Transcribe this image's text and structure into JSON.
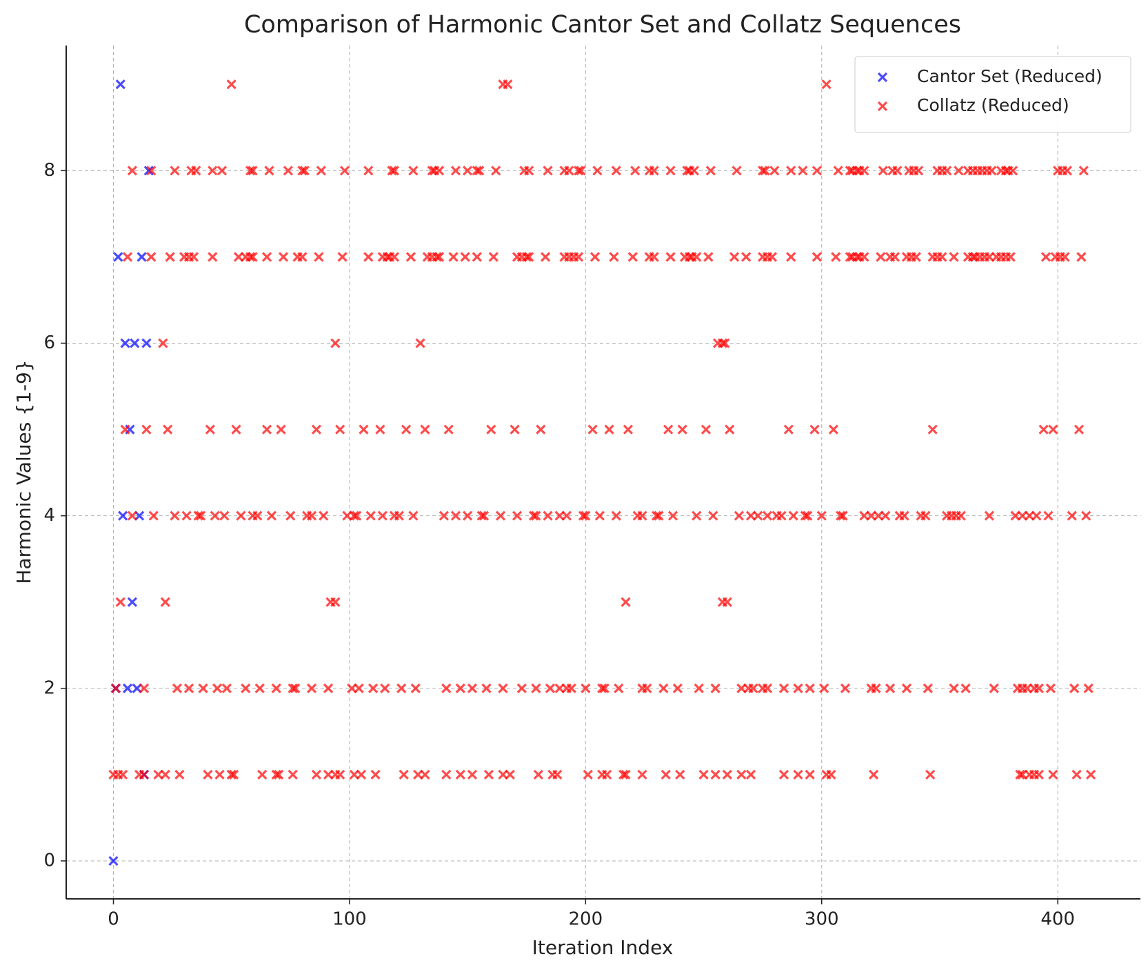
{
  "chart_data": {
    "type": "scatter",
    "title": "Comparison of Harmonic Cantor Set and Collatz Sequences",
    "x_label": "Iteration Index",
    "y_label": "Harmonic Values {1-9}",
    "xlim": [
      -20,
      435
    ],
    "ylim": [
      -0.44,
      9.45
    ],
    "xticks": [
      0,
      100,
      200,
      300,
      400
    ],
    "yticks": [
      0,
      2,
      4,
      6,
      8
    ],
    "grid": true,
    "legend_position": "upper right",
    "series": [
      {
        "name": "Cantor Set (Reduced)",
        "color": "#0000ff",
        "x": [
          0,
          1,
          2,
          3,
          4,
          5,
          6,
          7,
          8,
          9,
          10,
          11,
          12,
          13,
          14,
          15
        ],
        "values": [
          0,
          2,
          7,
          9,
          4,
          6,
          2,
          5,
          3,
          6,
          2,
          4,
          7,
          1,
          6,
          8
        ]
      },
      {
        "name": "Collatz (Reduced)",
        "color": "#ff0000",
        "x": [
          50,
          165,
          167,
          302,
          8,
          16,
          26,
          33,
          35,
          42,
          46,
          58,
          59,
          66,
          74,
          80,
          81,
          88,
          98,
          108,
          118,
          119,
          127,
          135,
          136,
          138,
          145,
          150,
          154,
          155,
          162,
          174,
          176,
          184,
          191,
          193,
          197,
          198,
          205,
          213,
          221,
          227,
          229,
          236,
          243,
          244,
          246,
          253,
          264,
          275,
          276,
          280,
          287,
          292,
          298,
          307,
          312,
          313,
          315,
          316,
          318,
          326,
          330,
          332,
          337,
          339,
          341,
          349,
          351,
          353,
          358,
          362,
          364,
          366,
          368,
          370,
          372,
          376,
          378,
          379,
          381,
          400,
          402,
          404,
          411,
          6,
          16,
          24,
          30,
          32,
          34,
          42,
          53,
          56,
          58,
          59,
          65,
          72,
          78,
          80,
          87,
          97,
          108,
          114,
          116,
          117,
          119,
          126,
          133,
          135,
          137,
          138,
          144,
          149,
          154,
          161,
          171,
          173,
          175,
          176,
          183,
          191,
          193,
          195,
          197,
          204,
          212,
          220,
          227,
          229,
          236,
          242,
          244,
          245,
          247,
          252,
          263,
          268,
          275,
          277,
          279,
          287,
          298,
          306,
          312,
          313,
          315,
          316,
          318,
          325,
          329,
          331,
          336,
          338,
          340,
          347,
          349,
          351,
          356,
          362,
          364,
          365,
          367,
          369,
          371,
          374,
          376,
          378,
          380,
          395,
          399,
          401,
          403,
          410,
          21,
          94,
          130,
          256,
          258,
          259,
          5,
          14,
          23,
          41,
          52,
          65,
          71,
          86,
          96,
          106,
          113,
          124,
          132,
          142,
          160,
          170,
          181,
          203,
          210,
          218,
          235,
          241,
          251,
          261,
          286,
          297,
          305,
          347,
          394,
          398,
          409,
          8,
          17,
          26,
          31,
          36,
          37,
          43,
          47,
          54,
          59,
          61,
          67,
          75,
          82,
          84,
          89,
          99,
          102,
          103,
          109,
          114,
          119,
          121,
          127,
          140,
          145,
          150,
          156,
          157,
          164,
          171,
          178,
          179,
          184,
          189,
          192,
          199,
          200,
          206,
          213,
          222,
          224,
          230,
          231,
          237,
          247,
          254,
          265,
          270,
          273,
          277,
          281,
          283,
          288,
          293,
          294,
          300,
          308,
          309,
          318,
          321,
          324,
          327,
          333,
          335,
          342,
          344,
          353,
          355,
          357,
          359,
          371,
          382,
          385,
          388,
          391,
          396,
          406,
          412,
          3,
          22,
          92,
          94,
          217,
          258,
          260,
          1,
          13,
          27,
          32,
          38,
          44,
          48,
          56,
          62,
          69,
          76,
          77,
          84,
          91,
          101,
          104,
          110,
          115,
          122,
          128,
          141,
          147,
          152,
          158,
          165,
          173,
          179,
          185,
          189,
          192,
          194,
          200,
          207,
          208,
          214,
          224,
          226,
          233,
          239,
          248,
          255,
          266,
          269,
          271,
          275,
          277,
          284,
          290,
          295,
          301,
          310,
          321,
          323,
          329,
          336,
          345,
          356,
          361,
          373,
          383,
          385,
          387,
          390,
          392,
          397,
          407,
          413,
          0,
          2,
          4,
          11,
          13,
          19,
          22,
          28,
          40,
          45,
          50,
          51,
          63,
          69,
          70,
          76,
          86,
          91,
          94,
          96,
          102,
          105,
          111,
          123,
          129,
          132,
          141,
          147,
          152,
          159,
          165,
          168,
          180,
          186,
          188,
          201,
          207,
          209,
          216,
          217,
          224,
          234,
          240,
          250,
          255,
          260,
          266,
          270,
          284,
          290,
          295,
          302,
          304,
          322,
          346,
          384,
          385,
          388,
          390,
          392,
          398,
          408,
          414
        ],
        "values": [
          9,
          9,
          9,
          9,
          8,
          8,
          8,
          8,
          8,
          8,
          8,
          8,
          8,
          8,
          8,
          8,
          8,
          8,
          8,
          8,
          8,
          8,
          8,
          8,
          8,
          8,
          8,
          8,
          8,
          8,
          8,
          8,
          8,
          8,
          8,
          8,
          8,
          8,
          8,
          8,
          8,
          8,
          8,
          8,
          8,
          8,
          8,
          8,
          8,
          8,
          8,
          8,
          8,
          8,
          8,
          8,
          8,
          8,
          8,
          8,
          8,
          8,
          8,
          8,
          8,
          8,
          8,
          8,
          8,
          8,
          8,
          8,
          8,
          8,
          8,
          8,
          8,
          8,
          8,
          8,
          8,
          8,
          8,
          8,
          8,
          7,
          7,
          7,
          7,
          7,
          7,
          7,
          7,
          7,
          7,
          7,
          7,
          7,
          7,
          7,
          7,
          7,
          7,
          7,
          7,
          7,
          7,
          7,
          7,
          7,
          7,
          7,
          7,
          7,
          7,
          7,
          7,
          7,
          7,
          7,
          7,
          7,
          7,
          7,
          7,
          7,
          7,
          7,
          7,
          7,
          7,
          7,
          7,
          7,
          7,
          7,
          7,
          7,
          7,
          7,
          7,
          7,
          7,
          7,
          7,
          7,
          7,
          7,
          7,
          7,
          7,
          7,
          7,
          7,
          7,
          7,
          7,
          7,
          7,
          7,
          7,
          7,
          7,
          7,
          7,
          7,
          7,
          7,
          7,
          7,
          7,
          7,
          7,
          7,
          6,
          6,
          6,
          6,
          6,
          6,
          5,
          5,
          5,
          5,
          5,
          5,
          5,
          5,
          5,
          5,
          5,
          5,
          5,
          5,
          5,
          5,
          5,
          5,
          5,
          5,
          5,
          5,
          5,
          5,
          5,
          5,
          5,
          5,
          5,
          5,
          5,
          4,
          4,
          4,
          4,
          4,
          4,
          4,
          4,
          4,
          4,
          4,
          4,
          4,
          4,
          4,
          4,
          4,
          4,
          4,
          4,
          4,
          4,
          4,
          4,
          4,
          4,
          4,
          4,
          4,
          4,
          4,
          4,
          4,
          4,
          4,
          4,
          4,
          4,
          4,
          4,
          4,
          4,
          4,
          4,
          4,
          4,
          4,
          4,
          4,
          4,
          4,
          4,
          4,
          4,
          4,
          4,
          4,
          4,
          4,
          4,
          4,
          4,
          4,
          4,
          4,
          4,
          4,
          4,
          4,
          4,
          4,
          4,
          4,
          4,
          4,
          4,
          4,
          4,
          4,
          3,
          3,
          3,
          3,
          3,
          3,
          3,
          2,
          2,
          2,
          2,
          2,
          2,
          2,
          2,
          2,
          2,
          2,
          2,
          2,
          2,
          2,
          2,
          2,
          2,
          2,
          2,
          2,
          2,
          2,
          2,
          2,
          2,
          2,
          2,
          2,
          2,
          2,
          2,
          2,
          2,
          2,
          2,
          2,
          2,
          2,
          2,
          2,
          2,
          2,
          2,
          2,
          2,
          2,
          2,
          2,
          2,
          2,
          2,
          2,
          2,
          2,
          2,
          2,
          2,
          2,
          2,
          2,
          2,
          2,
          2,
          2,
          2,
          2,
          1,
          1,
          1,
          1,
          1,
          1,
          1,
          1,
          1,
          1,
          1,
          1,
          1,
          1,
          1,
          1,
          1,
          1,
          1,
          1,
          1,
          1,
          1,
          1,
          1,
          1,
          1,
          1,
          1,
          1,
          1,
          1,
          1,
          1,
          1,
          1,
          1,
          1,
          1,
          1,
          1,
          1,
          1,
          1,
          1,
          1,
          1,
          1,
          1,
          1,
          1,
          1,
          1,
          1,
          1,
          1,
          1,
          1,
          1,
          1,
          1,
          1,
          1
        ]
      }
    ]
  }
}
